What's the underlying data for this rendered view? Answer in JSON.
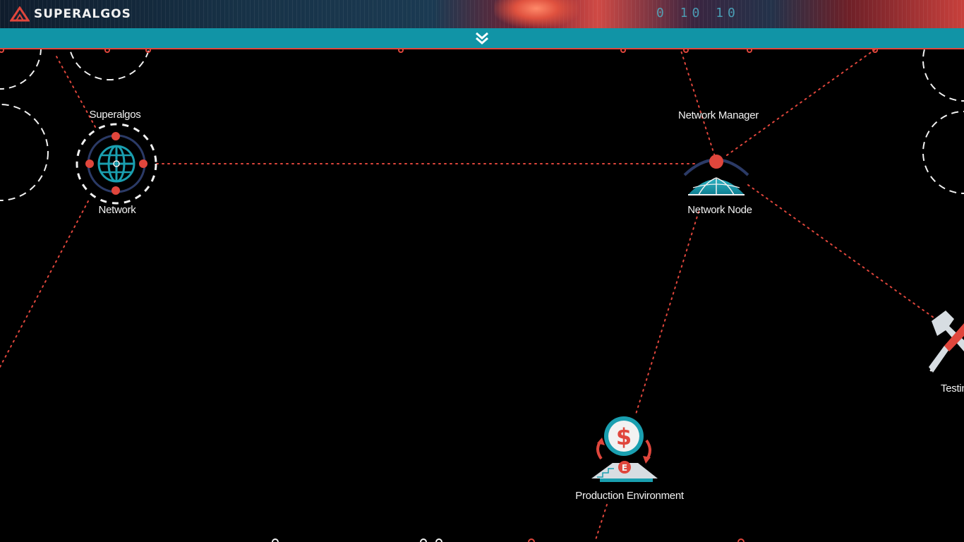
{
  "app": {
    "brand_name": "SUPERALGOS",
    "banner_digits": "0 10 10"
  },
  "toolbar": {
    "collapse_icon": "double-chevron-down-icon"
  },
  "canvas": {
    "nodes": {
      "network": {
        "top_label": "Superalgos",
        "bottom_label": "Network",
        "icon": "globe-icon"
      },
      "network_manager": {
        "label": "Network Manager"
      },
      "network_node": {
        "label": "Network Node",
        "icon": "dome-icon"
      },
      "production_environment": {
        "label": "Production Environment",
        "icon": "exchange-dollar-icon"
      },
      "testing_environment": {
        "label": "Testing En",
        "icon": "wrench-screwdriver-icon"
      }
    }
  },
  "colors": {
    "accent": "#e0463c",
    "toolbar": "#1194a6",
    "teal": "#1a9fb0",
    "background": "#000000"
  }
}
